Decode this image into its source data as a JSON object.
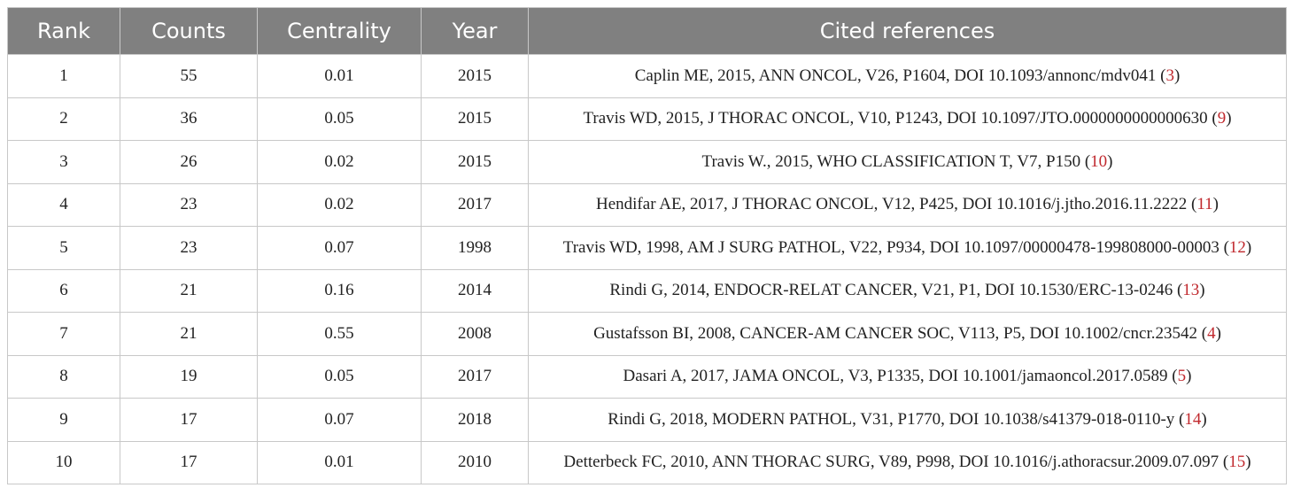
{
  "table": {
    "header": [
      "Rank",
      "Counts",
      "Centrality",
      "Year",
      "Cited references"
    ],
    "rows": [
      [
        "1",
        "55",
        "0.01",
        "2015",
        [
          "Caplin ME, 2015, ANN ONCOL, V26, P1604, DOI 10.1093/annonc/mdv041 (",
          "3",
          ")"
        ]
      ],
      [
        "2",
        "36",
        "0.05",
        "2015",
        [
          "Travis WD, 2015, J THORAC ONCOL, V10, P1243, DOI 10.1097/JTO.0000000000000630 (",
          "9",
          ")"
        ]
      ],
      [
        "3",
        "26",
        "0.02",
        "2015",
        [
          "Travis W., 2015, WHO CLASSIFICATION T, V7, P150 (",
          "10",
          ")"
        ]
      ],
      [
        "4",
        "23",
        "0.02",
        "2017",
        [
          "Hendifar AE, 2017, J THORAC ONCOL, V12, P425, DOI 10.1016/j.jtho.2016.11.2222 (",
          "11",
          ")"
        ]
      ],
      [
        "5",
        "23",
        "0.07",
        "1998",
        [
          "Travis WD, 1998, AM J SURG PATHOL, V22, P934, DOI 10.1097/00000478-199808000-00003 (",
          "12",
          ")"
        ]
      ],
      [
        "6",
        "21",
        "0.16",
        "2014",
        [
          "Rindi G, 2014, ENDOCR-RELAT CANCER, V21, P1, DOI 10.1530/ERC-13-0246 (",
          "13",
          ")"
        ]
      ],
      [
        "7",
        "21",
        "0.55",
        "2008",
        [
          "Gustafsson BI, 2008, CANCER-AM CANCER SOC, V113, P5, DOI 10.1002/cncr.23542 (",
          "4",
          ")"
        ]
      ],
      [
        "8",
        "19",
        "0.05",
        "2017",
        [
          "Dasari A, 2017, JAMA ONCOL, V3, P1335, DOI 10.1001/jamaoncol.2017.0589 (",
          "5",
          ")"
        ]
      ],
      [
        "9",
        "17",
        "0.07",
        "2018",
        [
          "Rindi G, 2018, MODERN PATHOL, V31, P1770, DOI 10.1038/s41379-018-0110-y (",
          "14",
          ")"
        ]
      ],
      [
        "10",
        "17",
        "0.01",
        "2010",
        [
          "Detterbeck FC, 2010, ANN THORAC SURG, V89, P998, DOI 10.1016/j.athoracsur.2009.07.097 (",
          "15",
          ")"
        ]
      ]
    ]
  }
}
